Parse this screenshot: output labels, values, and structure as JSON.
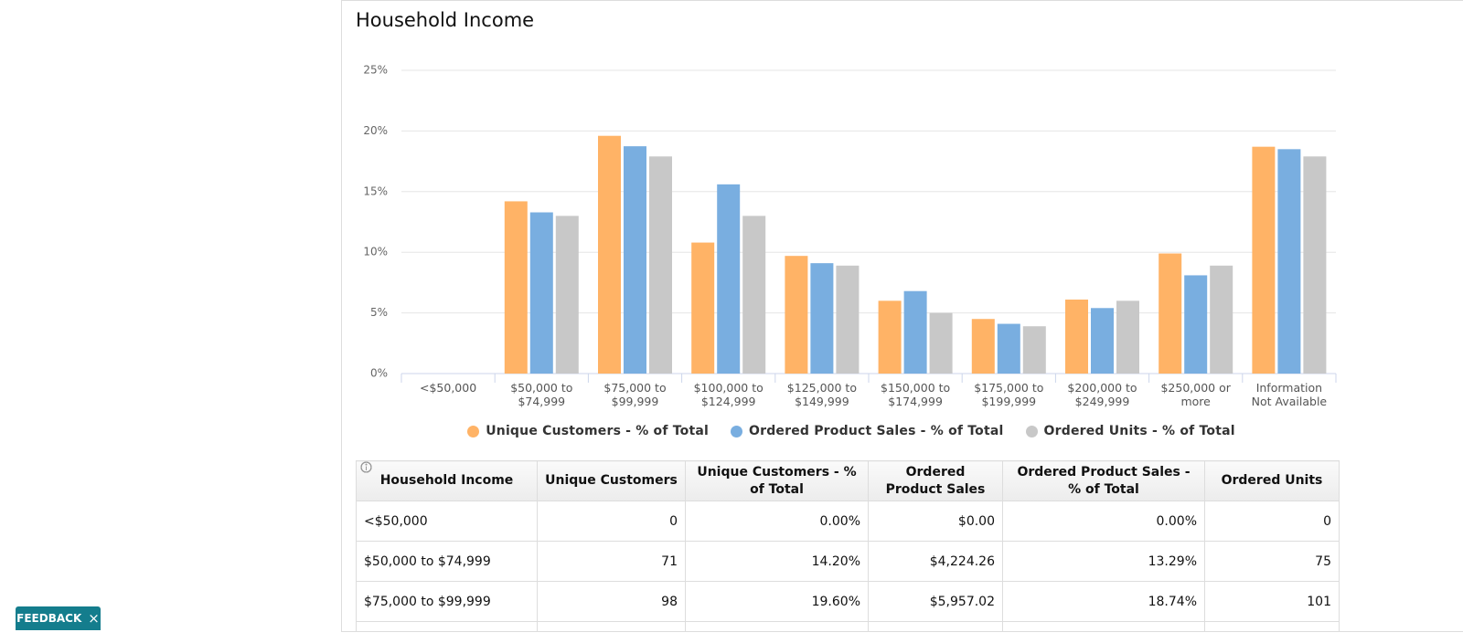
{
  "chart_data": {
    "type": "bar",
    "title": "Household Income",
    "categories": [
      "<$50,000",
      "$50,000 to $74,999",
      "$75,000 to $99,999",
      "$100,000 to $124,999",
      "$125,000 to $149,999",
      "$150,000 to $174,999",
      "$175,000 to $199,999",
      "$200,000 to $249,999",
      "$250,000 or more",
      "Information Not Available"
    ],
    "series": [
      {
        "name": "Unique Customers - % of Total",
        "color": "#ffb366",
        "values": [
          0,
          14.2,
          19.6,
          10.8,
          9.7,
          6.0,
          4.5,
          6.1,
          9.9,
          18.7
        ]
      },
      {
        "name": "Ordered Product Sales - % of Total",
        "color": "#79aee0",
        "values": [
          0,
          13.29,
          18.74,
          15.6,
          9.1,
          6.8,
          4.1,
          5.4,
          8.1,
          18.5
        ]
      },
      {
        "name": "Ordered Units - % of Total",
        "color": "#c8c8c8",
        "values": [
          0,
          13.0,
          17.9,
          13.0,
          8.9,
          5.0,
          3.9,
          6.0,
          8.9,
          17.9
        ]
      }
    ],
    "ylim": [
      0,
      25
    ],
    "yticks": [
      {
        "value": 0,
        "label": "0%"
      },
      {
        "value": 5,
        "label": "5%"
      },
      {
        "value": 10,
        "label": "10%"
      },
      {
        "value": 15,
        "label": "15%"
      },
      {
        "value": 20,
        "label": "20%"
      },
      {
        "value": 25,
        "label": "25%"
      }
    ],
    "grid": true
  },
  "table": {
    "columns": [
      "Household Income",
      "Unique Customers",
      "Unique Customers - % of Total",
      "Ordered Product Sales",
      "Ordered Product Sales - % of Total",
      "Ordered Units"
    ],
    "rows": [
      [
        "<$50,000",
        "0",
        "0.00%",
        "$0.00",
        "0.00%",
        "0"
      ],
      [
        "$50,000 to $74,999",
        "71",
        "14.20%",
        "$4,224.26",
        "13.29%",
        "75"
      ],
      [
        "$75,000 to $99,999",
        "98",
        "19.60%",
        "$5,957.02",
        "18.74%",
        "101"
      ]
    ]
  },
  "feedback": {
    "label": "FEEDBACK",
    "close": "×"
  }
}
